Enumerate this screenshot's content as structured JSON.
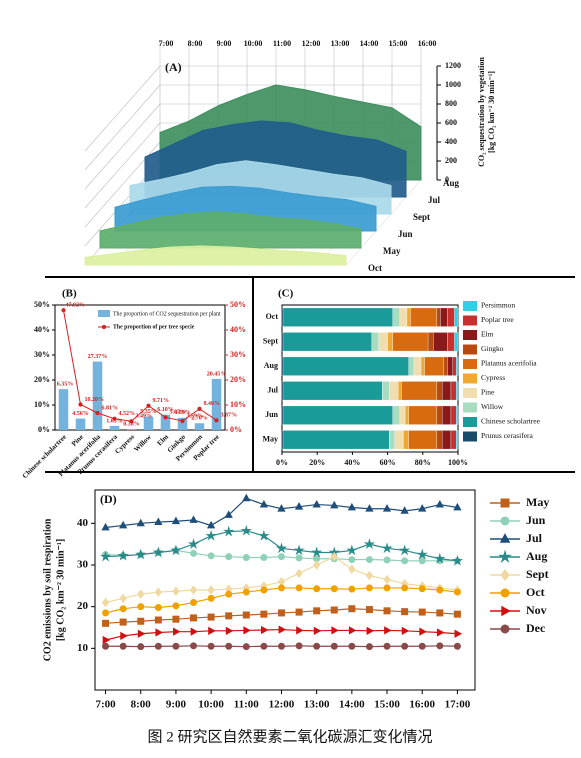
{
  "chart_data": [
    {
      "type": "area3d",
      "panel_label": "(A)",
      "categories": [
        "7:00",
        "8:00",
        "9:00",
        "10:00",
        "11:00",
        "12:00",
        "13:00",
        "14:00",
        "15:00",
        "16:00"
      ],
      "series": [
        {
          "name": "Aug",
          "color": "#3f8f5f",
          "values": [
            500,
            620,
            780,
            900,
            1000,
            950,
            880,
            820,
            760,
            560
          ]
        },
        {
          "name": "Jul",
          "color": "#215d8c",
          "values": [
            420,
            560,
            700,
            760,
            800,
            780,
            700,
            640,
            600,
            480
          ]
        },
        {
          "name": "Sept",
          "color": "#a9d9ea",
          "values": [
            300,
            360,
            430,
            520,
            560,
            520,
            470,
            420,
            380,
            300
          ]
        },
        {
          "name": "Jun",
          "color": "#3b9bd1",
          "values": [
            250,
            330,
            400,
            460,
            470,
            450,
            400,
            360,
            330,
            260
          ]
        },
        {
          "name": "May",
          "color": "#5cae6c",
          "values": [
            180,
            250,
            320,
            360,
            380,
            360,
            320,
            300,
            260,
            200
          ]
        },
        {
          "name": "Oct",
          "color": "#dcefa0",
          "values": [
            80,
            120,
            160,
            190,
            200,
            190,
            170,
            150,
            130,
            100
          ]
        }
      ],
      "zlabel": [
        "CO₂ sequestration by vegetation",
        "[kg CO₂ km⁻² 30 min⁻¹]"
      ],
      "zlim": [
        0,
        1200
      ],
      "zticks": [
        0,
        200,
        400,
        600,
        800,
        1000,
        1200
      ]
    },
    {
      "type": "bar_line",
      "panel_label": "(B)",
      "categories": [
        "Chinese scholartree",
        "Pine",
        "Platanus acerifolia",
        "Prunus cerasifera",
        "Cypress",
        "Willow",
        "Elm",
        "Ginkgo",
        "Persimmon",
        "Poplar tree"
      ],
      "series": [
        {
          "name": "The proportion of CO2 sequestration per plant",
          "color": "#74b3dd",
          "values": [
            16.35,
            4.56,
            27.37,
            1.65,
            0.38,
            5.35,
            6.1,
            4.89,
            2.7,
            20.45
          ],
          "value_labels": [
            "16.35%",
            "4.56%",
            "27.37%",
            "1.65%",
            "0.38%",
            "5.35%",
            "6.10%",
            "4.89%",
            "2.70%",
            "20.45%"
          ]
        },
        {
          "name": "The proportion of per tree specie",
          "color": "#d62020",
          "axis": "y2",
          "values": [
            47.92,
            10.2,
            6.81,
            4.52,
            3.49,
            9.71,
            5.07,
            3.59,
            8.46,
            3.87
          ],
          "value_labels": [
            "47.92%",
            "10.20%",
            "6.81%",
            "4.52%",
            "3.49%",
            "9.71%",
            "5.07%",
            "3.59%",
            "8.46%",
            "3.87%"
          ]
        }
      ],
      "ylim": [
        0,
        50
      ],
      "yticks": [
        {
          "value": 0,
          "label": "0%"
        },
        {
          "value": 10,
          "label": "10%"
        },
        {
          "value": 20,
          "label": "20%"
        },
        {
          "value": 30,
          "label": "30%"
        },
        {
          "value": 40,
          "label": "40%"
        },
        {
          "value": 50,
          "label": "50%"
        }
      ],
      "y2lim": [
        0,
        50
      ],
      "y2ticks": [
        {
          "value": 0,
          "label": "0%"
        },
        {
          "value": 10,
          "label": "10%"
        },
        {
          "value": 20,
          "label": "20%"
        },
        {
          "value": 30,
          "label": "30%"
        },
        {
          "value": 40,
          "label": "40%"
        },
        {
          "value": 50,
          "label": "50%"
        }
      ]
    },
    {
      "type": "stacked_barh",
      "panel_label": "(C)",
      "categories": [
        "Oct",
        "Sept",
        "Aug",
        "Jul",
        "Jun",
        "May"
      ],
      "series": [
        {
          "name": "Prunus cerasifera",
          "color": "#1a4a6a",
          "values": [
            1,
            1,
            1,
            1,
            1,
            1
          ]
        },
        {
          "name": "Chinese scholartree",
          "color": "#1a9a98",
          "values": [
            62,
            50,
            71,
            56,
            62,
            60
          ]
        },
        {
          "name": "Willow",
          "color": "#a8dcc0",
          "values": [
            4,
            4,
            3,
            4,
            4,
            3
          ]
        },
        {
          "name": "Pine",
          "color": "#f0ddb0",
          "values": [
            4,
            5,
            4,
            5,
            3,
            5
          ]
        },
        {
          "name": "Cypress",
          "color": "#f0a830",
          "values": [
            2,
            3,
            2,
            2,
            2,
            3
          ]
        },
        {
          "name": "Platanus acerifolia",
          "color": "#d86a10",
          "values": [
            15,
            20,
            11,
            20,
            16,
            16
          ]
        },
        {
          "name": "Gingko",
          "color": "#b84a10",
          "values": [
            2,
            3,
            2,
            3,
            3,
            3
          ]
        },
        {
          "name": "Elm",
          "color": "#8a1a1a",
          "values": [
            4,
            8,
            3,
            5,
            5,
            5
          ]
        },
        {
          "name": "Poplar tree",
          "color": "#c83030",
          "values": [
            4,
            4,
            2,
            3,
            3,
            3
          ]
        },
        {
          "name": "Persimmon",
          "color": "#30d0e8",
          "values": [
            2,
            2,
            1,
            1,
            1,
            1
          ]
        }
      ],
      "xlim": [
        0,
        100
      ],
      "xticks": [
        {
          "value": 0,
          "label": "0%"
        },
        {
          "value": 20,
          "label": "20%"
        },
        {
          "value": 40,
          "label": "40%"
        },
        {
          "value": 60,
          "label": "60%"
        },
        {
          "value": 80,
          "label": "80%"
        },
        {
          "value": 100,
          "label": "100%"
        }
      ]
    },
    {
      "type": "line",
      "panel_label": "(D)",
      "x": [
        7,
        7.5,
        8,
        8.5,
        9,
        9.5,
        10,
        10.5,
        11,
        11.5,
        12,
        12.5,
        13,
        13.5,
        14,
        14.5,
        15,
        15.5,
        16,
        16.5,
        17
      ],
      "series": [
        {
          "name": "May",
          "color": "#c0601a",
          "marker": "square",
          "values": [
            16,
            16.3,
            16.5,
            16.8,
            17,
            17.3,
            17.5,
            17.8,
            18,
            18.2,
            18.5,
            18.7,
            19,
            19.2,
            19.5,
            19.3,
            19,
            18.8,
            18.7,
            18.5,
            18.2
          ]
        },
        {
          "name": "Jun",
          "color": "#8fd0b8",
          "marker": "circle",
          "values": [
            32.5,
            32.3,
            32.5,
            33,
            33.5,
            32.8,
            32.2,
            32,
            31.8,
            31.8,
            32,
            31.7,
            31.5,
            31.5,
            31.3,
            31.3,
            31.2,
            31,
            31,
            31,
            31
          ]
        },
        {
          "name": "Jul",
          "color": "#1f4e79",
          "marker": "triangle",
          "values": [
            39,
            39.5,
            40,
            40.3,
            40.5,
            40.8,
            39.5,
            42,
            46,
            44.5,
            43.5,
            44,
            44.5,
            44.3,
            43.8,
            43.5,
            43.5,
            43,
            43.5,
            44.5,
            43.8
          ]
        },
        {
          "name": "Aug",
          "color": "#2a8a8a",
          "marker": "star",
          "values": [
            32,
            32.2,
            32.5,
            33,
            33.5,
            35,
            37,
            38,
            38.2,
            37,
            34,
            33.5,
            33,
            33,
            33.5,
            35,
            34,
            33.5,
            32.5,
            31.5,
            31
          ]
        },
        {
          "name": "Sept",
          "color": "#f0d8a0",
          "marker": "diamond",
          "values": [
            21,
            22,
            23,
            23.5,
            23.7,
            24,
            24,
            24.2,
            24.5,
            25,
            26,
            28,
            30,
            32,
            29,
            27.5,
            26.5,
            25.5,
            25,
            24.5,
            24
          ]
        },
        {
          "name": "Oct",
          "color": "#f0a000",
          "marker": "circle",
          "values": [
            18.5,
            19.5,
            20,
            19.8,
            20.2,
            21,
            22,
            23,
            23.5,
            24,
            24.5,
            24.5,
            24.3,
            24.3,
            24.2,
            24.5,
            24.5,
            24.5,
            24.3,
            24,
            23.5
          ]
        },
        {
          "name": "Nov",
          "color": "#d01010",
          "marker": "triangle-right",
          "values": [
            12,
            13,
            13.5,
            13.8,
            14,
            14,
            14.2,
            14.2,
            14.3,
            14.4,
            14.5,
            14.3,
            14.2,
            14.3,
            14.3,
            14.2,
            14.3,
            14.2,
            14,
            13.8,
            13.5
          ]
        },
        {
          "name": "Dec",
          "color": "#8a4a4a",
          "marker": "circle",
          "values": [
            10.5,
            10.5,
            10.4,
            10.5,
            10.5,
            10.6,
            10.5,
            10.5,
            10.4,
            10.5,
            10.5,
            10.6,
            10.5,
            10.5,
            10.5,
            10.4,
            10.5,
            10.5,
            10.5,
            10.6,
            10.5
          ]
        }
      ],
      "ylabel": [
        "CO2 emissions by soil respiration",
        "[kg CO₂ km⁻² 30 min⁻¹]"
      ],
      "xlim": [
        6.7,
        17.5
      ],
      "xticks": [
        {
          "value": 7,
          "label": "7:00"
        },
        {
          "value": 8,
          "label": "8:00"
        },
        {
          "value": 9,
          "label": "9:00"
        },
        {
          "value": 10,
          "label": "10:00"
        },
        {
          "value": 11,
          "label": "11:00"
        },
        {
          "value": 12,
          "label": "12:00"
        },
        {
          "value": 13,
          "label": "13:00"
        },
        {
          "value": 14,
          "label": "14:00"
        },
        {
          "value": 15,
          "label": "15:00"
        },
        {
          "value": 16,
          "label": "16:00"
        },
        {
          "value": 17,
          "label": "17:00"
        }
      ],
      "ylim": [
        0,
        48
      ],
      "yticks": [
        10,
        20,
        30,
        40
      ]
    }
  ],
  "caption": "图 2 研究区自然要素二氧化碳源汇变化情况"
}
